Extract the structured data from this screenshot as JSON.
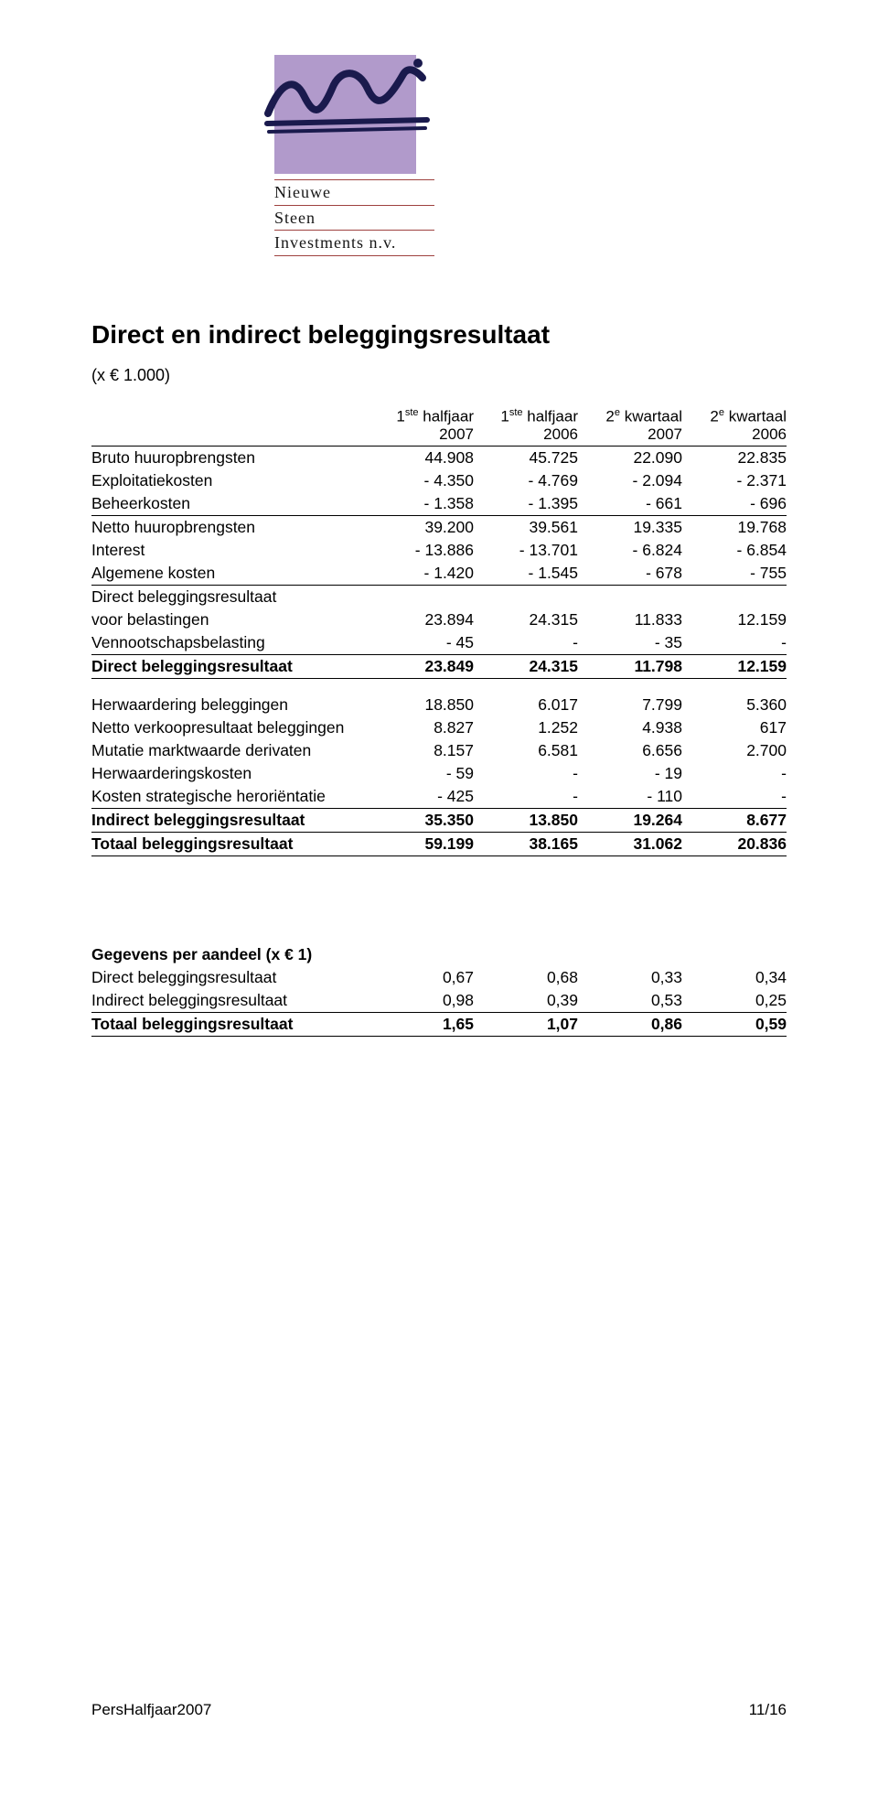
{
  "logo": {
    "line1": "Nieuwe",
    "line2": "Steen",
    "line3": "Investments n.v.",
    "accent_color": "#b19acb",
    "rule_color": "#9e413f",
    "ink_color": "#1a1a4d"
  },
  "title": "Direct en indirect beleggingsresultaat",
  "multiplier": "(x € 1.000)",
  "headers": {
    "c1": {
      "pre": "1",
      "sup": "ste",
      "post": " halfjaar 2007"
    },
    "c2": {
      "pre": "1",
      "sup": "ste",
      "post": " halfjaar 2006"
    },
    "c3": {
      "pre": "2",
      "sup": "e",
      "post": " kwartaal 2007"
    },
    "c4": {
      "pre": "2",
      "sup": "e",
      "post": " kwartaal 2006"
    }
  },
  "table1": {
    "rows": [
      {
        "label": "Bruto huuropbrengsten",
        "v": [
          "44.908",
          "45.725",
          "22.090",
          "22.835"
        ]
      },
      {
        "label": "Exploitatiekosten",
        "v": [
          "- 4.350",
          "- 4.769",
          "- 2.094",
          "- 2.371"
        ]
      },
      {
        "label": "Beheerkosten",
        "v": [
          "- 1.358",
          "- 1.395",
          "-   661",
          "-   696"
        ]
      }
    ],
    "netto": {
      "label": "Netto huuropbrengsten",
      "v": [
        "39.200",
        "39.561",
        "19.335",
        "19.768"
      ]
    },
    "rows2": [
      {
        "label": "Interest",
        "v": [
          "- 13.886",
          "- 13.701",
          "- 6.824",
          "- 6.854"
        ]
      },
      {
        "label": "Algemene kosten",
        "v": [
          "- 1.420",
          "- 1.545",
          "-   678",
          "-   755"
        ]
      }
    ],
    "voor": {
      "label": "voor belastingen",
      "labelTop": "Direct beleggingsresultaat",
      "v": [
        "23.894",
        "24.315",
        "11.833",
        "12.159"
      ]
    },
    "venn": {
      "label": "Vennootschapsbelasting",
      "v": [
        "- 45",
        "-",
        "-   35",
        "-"
      ]
    },
    "direct": {
      "label": "Direct beleggingsresultaat",
      "v": [
        "23.849",
        "24.315",
        "11.798",
        "12.159"
      ]
    },
    "rows3": [
      {
        "label": "Herwaardering beleggingen",
        "v": [
          "18.850",
          "6.017",
          "7.799",
          "5.360"
        ]
      },
      {
        "label": "Netto verkoopresultaat beleggingen",
        "v": [
          "8.827",
          "1.252",
          "4.938",
          "617"
        ]
      },
      {
        "label": "Mutatie marktwaarde derivaten",
        "v": [
          "8.157",
          "6.581",
          "6.656",
          "2.700"
        ]
      },
      {
        "label": "Herwaarderingskosten",
        "v": [
          "- 59",
          "-",
          "-   19",
          "-"
        ]
      },
      {
        "label": "Kosten strategische heroriëntatie",
        "v": [
          "- 425",
          "-",
          "-   110",
          "-"
        ]
      }
    ],
    "indirect": {
      "label": "Indirect beleggingsresultaat",
      "v": [
        "35.350",
        "13.850",
        "19.264",
        "8.677"
      ]
    },
    "totaal": {
      "label": "Totaal beleggingsresultaat",
      "v": [
        "59.199",
        "38.165",
        "31.062",
        "20.836"
      ]
    }
  },
  "table2": {
    "heading": "Gegevens per aandeel (x € 1)",
    "rows": [
      {
        "label": "Direct beleggingsresultaat",
        "v": [
          "0,67",
          "0,68",
          "0,33",
          "0,34"
        ]
      },
      {
        "label": "Indirect beleggingsresultaat",
        "v": [
          "0,98",
          "0,39",
          "0,53",
          "0,25"
        ]
      }
    ],
    "totaal": {
      "label": "Totaal beleggingsresultaat",
      "v": [
        "1,65",
        "1,07",
        "0,86",
        "0,59"
      ]
    }
  },
  "footer": {
    "left": "PersHalfjaar2007",
    "right": "11/16"
  }
}
